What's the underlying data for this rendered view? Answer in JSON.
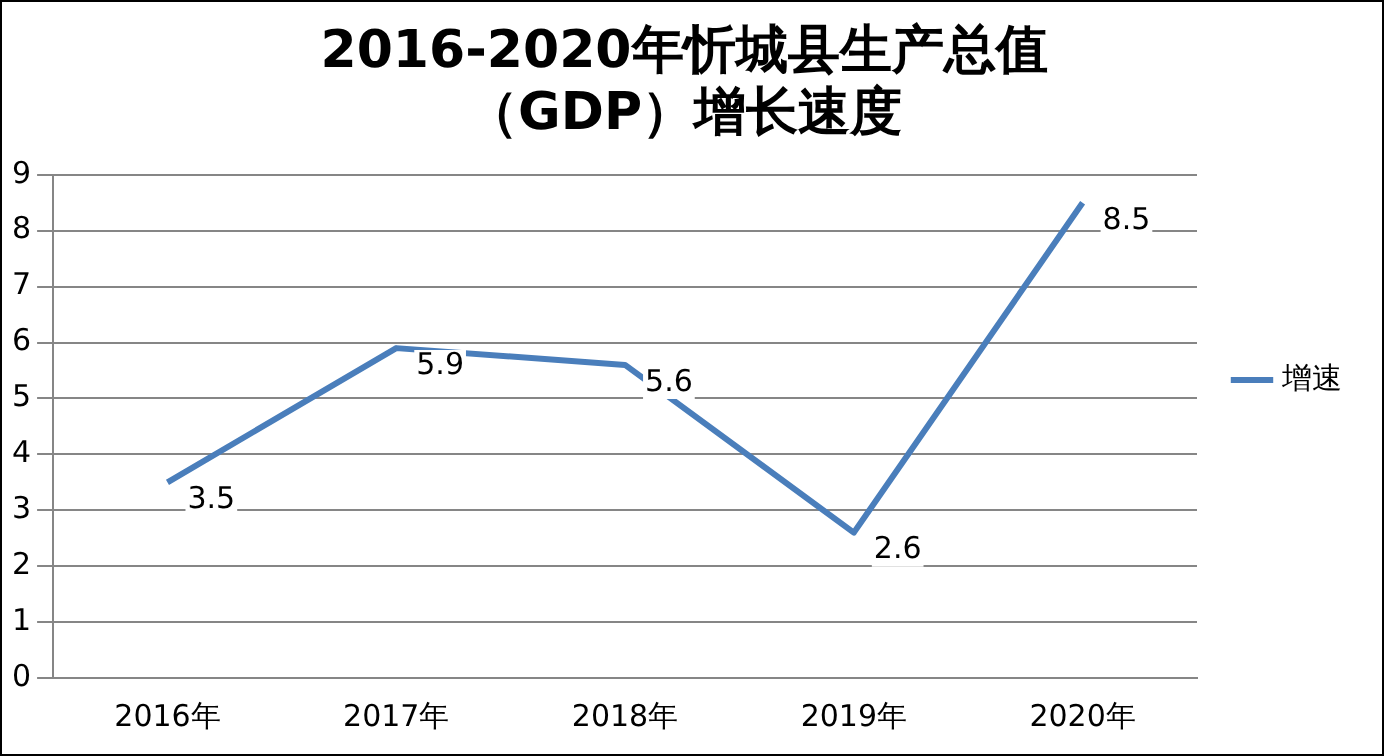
{
  "chart_data": {
    "type": "line",
    "title": "2016-2020年忻城县生产总值（GDP）增长速度",
    "categories": [
      "2016年",
      "2017年",
      "2018年",
      "2019年",
      "2020年"
    ],
    "series": [
      {
        "name": "增速",
        "color": "#4a7ebb",
        "values": [
          3.5,
          5.9,
          5.6,
          2.6,
          8.5
        ]
      }
    ],
    "ylim": [
      0,
      9
    ],
    "yticks": [
      0,
      1,
      2,
      3,
      4,
      5,
      6,
      7,
      8,
      9
    ],
    "grid": "y",
    "legend": "right",
    "data_labels": true,
    "marker": "none",
    "line_style": "solid"
  }
}
